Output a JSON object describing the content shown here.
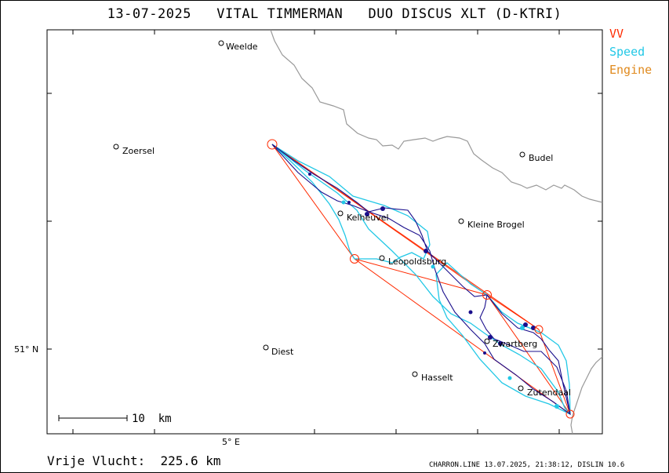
{
  "header": {
    "date": "13-07-2025",
    "pilot": "VITAL TIMMERMAN",
    "glider": "DUO DISCUS XLT (D-KTRI)"
  },
  "legend": [
    {
      "label": "VV",
      "color": "#ff2a00"
    },
    {
      "label": "Speed",
      "color": "#22c8e6"
    },
    {
      "label": "Engine",
      "color": "#e08a1e"
    }
  ],
  "map": {
    "border_color": "#999999",
    "cities": [
      {
        "name": "Weelde"
      },
      {
        "name": "Zoersel"
      },
      {
        "name": "Budel"
      },
      {
        "name": "Kleine Brogel"
      },
      {
        "name": "Kelheuvel"
      },
      {
        "name": "Leopoldsburg"
      },
      {
        "name": "Diest"
      },
      {
        "name": "Zwartberg"
      },
      {
        "name": "Hasselt"
      },
      {
        "name": "Zutendaal"
      }
    ],
    "lat_label": "51° N",
    "lon_label": "5° E",
    "scale_label": "10  km",
    "track_colors": {
      "task": "#ff2a00",
      "speed": "#22c8e6",
      "track": "#1a0f8c"
    }
  },
  "footer": {
    "distance": "Vrije Vlucht:  225.6 km",
    "credit": "CHARRON.LINE 13.07.2025, 21:38:12, DISLIN 10.6"
  }
}
